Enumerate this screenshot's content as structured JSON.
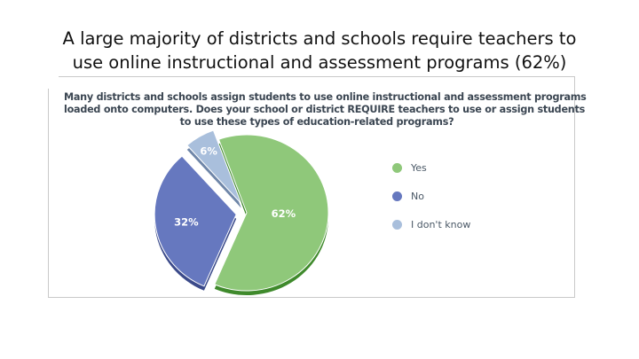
{
  "slide": {
    "title_lines": [
      "A large majority of districts and schools require teachers to",
      "use online instructional and assessment programs (62%)"
    ]
  },
  "chart_data": {
    "type": "pie",
    "title_lines": [
      "Many districts and schools assign students to use online instructional and assessment programs",
      "loaded onto computers. Does your school or district REQUIRE teachers to use or assign students",
      "to use these types of education-related programs?"
    ],
    "slices": [
      {
        "label": "Yes",
        "value": 62,
        "value_label": "62%",
        "color": "#8fc87a",
        "shade": "#3f8a2c",
        "exploded": false
      },
      {
        "label": "No",
        "value": 32,
        "value_label": "32%",
        "color": "#6678bf",
        "shade": "#3b4a8a",
        "exploded": true
      },
      {
        "label": "I don't know",
        "value": 6,
        "value_label": "6%",
        "color": "#a9bfdc",
        "shade": "#6f86a8",
        "exploded": true
      }
    ],
    "legend_position": "right"
  }
}
